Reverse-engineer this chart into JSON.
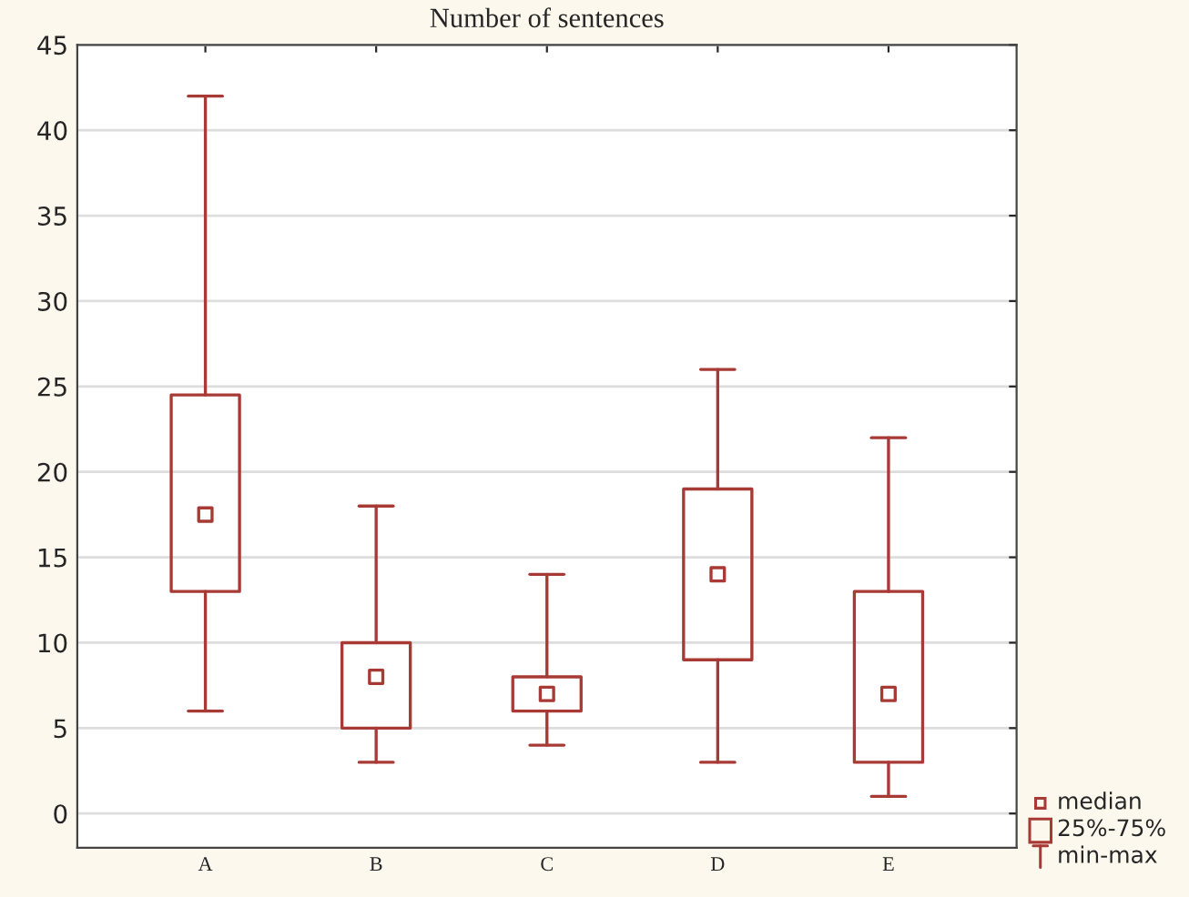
{
  "chart_data": {
    "type": "box",
    "title": "Number of sentences",
    "categories": [
      "A",
      "B",
      "C",
      "D",
      "E"
    ],
    "boxes": [
      {
        "low": 6,
        "q1": 13,
        "median": 17.5,
        "q3": 24.5,
        "high": 42
      },
      {
        "low": 3,
        "q1": 5,
        "median": 8,
        "q3": 10,
        "high": 18
      },
      {
        "low": 4,
        "q1": 6,
        "median": 7,
        "q3": 8,
        "high": 14
      },
      {
        "low": 3,
        "q1": 9,
        "median": 14,
        "q3": 19,
        "high": 26
      },
      {
        "low": 1,
        "q1": 3,
        "median": 7,
        "q3": 13,
        "high": 22
      }
    ],
    "color": "#a83a36",
    "ylim": [
      -2,
      45
    ],
    "yticks": [
      0,
      5,
      10,
      15,
      20,
      25,
      30,
      35,
      40,
      45
    ],
    "grid": "y",
    "annotations": [
      "median",
      "25%-75%",
      "min-max"
    ]
  }
}
